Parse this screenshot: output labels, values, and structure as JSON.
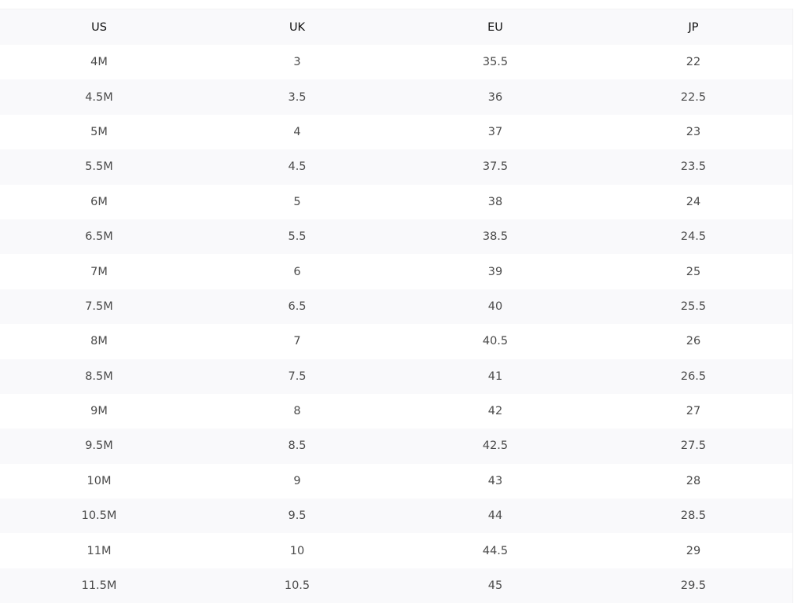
{
  "table": {
    "headers": [
      "US",
      "UK",
      "EU",
      "JP"
    ],
    "rows": [
      [
        "4M",
        "3",
        "35.5",
        "22"
      ],
      [
        "4.5M",
        "3.5",
        "36",
        "22.5"
      ],
      [
        "5M",
        "4",
        "37",
        "23"
      ],
      [
        "5.5M",
        "4.5",
        "37.5",
        "23.5"
      ],
      [
        "6M",
        "5",
        "38",
        "24"
      ],
      [
        "6.5M",
        "5.5",
        "38.5",
        "24.5"
      ],
      [
        "7M",
        "6",
        "39",
        "25"
      ],
      [
        "7.5M",
        "6.5",
        "40",
        "25.5"
      ],
      [
        "8M",
        "7",
        "40.5",
        "26"
      ],
      [
        "8.5M",
        "7.5",
        "41",
        "26.5"
      ],
      [
        "9M",
        "8",
        "42",
        "27"
      ],
      [
        "9.5M",
        "8.5",
        "42.5",
        "27.5"
      ],
      [
        "10M",
        "9",
        "43",
        "28"
      ],
      [
        "10.5M",
        "9.5",
        "44",
        "28.5"
      ],
      [
        "11M",
        "10",
        "44.5",
        "29"
      ],
      [
        "11.5M",
        "10.5",
        "45",
        "29.5"
      ]
    ]
  }
}
